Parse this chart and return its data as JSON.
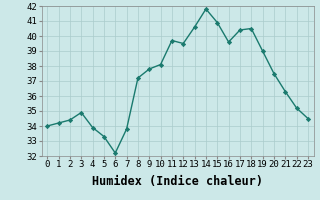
{
  "xlabel": "Humidex (Indice chaleur)",
  "x_values": [
    0,
    1,
    2,
    3,
    4,
    5,
    6,
    7,
    8,
    9,
    10,
    11,
    12,
    13,
    14,
    15,
    16,
    17,
    18,
    19,
    20,
    21,
    22,
    23
  ],
  "y_values": [
    34.0,
    34.2,
    34.4,
    34.9,
    33.9,
    33.3,
    32.2,
    33.8,
    37.2,
    37.8,
    38.1,
    39.7,
    39.5,
    40.6,
    41.8,
    40.9,
    39.6,
    40.4,
    40.5,
    39.0,
    37.5,
    36.3,
    35.2,
    34.5
  ],
  "line_color": "#1a7a6e",
  "marker": "D",
  "marker_size": 2.2,
  "linewidth": 1.0,
  "ylim": [
    32,
    42
  ],
  "yticks": [
    32,
    33,
    34,
    35,
    36,
    37,
    38,
    39,
    40,
    41,
    42
  ],
  "xticks": [
    0,
    1,
    2,
    3,
    4,
    5,
    6,
    7,
    8,
    9,
    10,
    11,
    12,
    13,
    14,
    15,
    16,
    17,
    18,
    19,
    20,
    21,
    22,
    23
  ],
  "bg_color": "#cce8e8",
  "grid_color": "#aacccc",
  "tick_fontsize": 6.5,
  "xlabel_fontsize": 8.5
}
